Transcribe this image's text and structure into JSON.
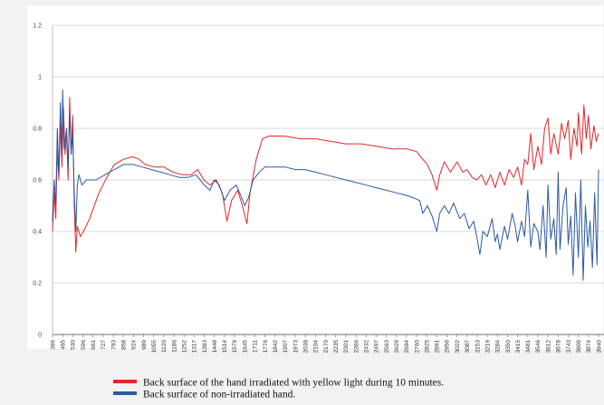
{
  "chart_data": {
    "type": "line",
    "ylim": [
      0,
      1.2
    ],
    "yticks": [
      "0",
      "0.2",
      "0.4",
      "0.6",
      "0.8",
      "1",
      "1.2"
    ],
    "grid": true,
    "legend_position": "bottom",
    "x_categories": [
      "399",
      "465",
      "530",
      "596",
      "661",
      "727",
      "793",
      "858",
      "924",
      "989",
      "1055",
      "1120",
      "1186",
      "1252",
      "1317",
      "1383",
      "1448",
      "1514",
      "1579",
      "1645",
      "1711",
      "1776",
      "1842",
      "1907",
      "1973",
      "2038",
      "2104",
      "2170",
      "2235",
      "2301",
      "2366",
      "2432",
      "2497",
      "2563",
      "2629",
      "2694",
      "2760",
      "2825",
      "2891",
      "2956",
      "3022",
      "3087",
      "3153",
      "3219",
      "3284",
      "3350",
      "3415",
      "3481",
      "3546",
      "3612",
      "3678",
      "3743",
      "3809",
      "3874",
      "3940"
    ],
    "series": [
      {
        "name": "Back surface of the hand irradiated with yellow light during 10 minutes.",
        "color": "#e3262b",
        "points": [
          [
            399,
            0.4
          ],
          [
            410,
            0.55
          ],
          [
            420,
            0.45
          ],
          [
            430,
            0.72
          ],
          [
            440,
            0.6
          ],
          [
            450,
            0.82
          ],
          [
            460,
            0.65
          ],
          [
            470,
            0.88
          ],
          [
            480,
            0.7
          ],
          [
            490,
            0.78
          ],
          [
            500,
            0.6
          ],
          [
            510,
            0.92
          ],
          [
            520,
            0.7
          ],
          [
            530,
            0.85
          ],
          [
            540,
            0.5
          ],
          [
            550,
            0.32
          ],
          [
            560,
            0.42
          ],
          [
            580,
            0.38
          ],
          [
            600,
            0.4
          ],
          [
            640,
            0.45
          ],
          [
            700,
            0.55
          ],
          [
            760,
            0.62
          ],
          [
            800,
            0.66
          ],
          [
            860,
            0.68
          ],
          [
            920,
            0.69
          ],
          [
            960,
            0.68
          ],
          [
            1000,
            0.66
          ],
          [
            1060,
            0.65
          ],
          [
            1120,
            0.65
          ],
          [
            1180,
            0.63
          ],
          [
            1240,
            0.62
          ],
          [
            1300,
            0.62
          ],
          [
            1340,
            0.64
          ],
          [
            1380,
            0.6
          ],
          [
            1420,
            0.58
          ],
          [
            1460,
            0.6
          ],
          [
            1500,
            0.55
          ],
          [
            1530,
            0.44
          ],
          [
            1560,
            0.52
          ],
          [
            1600,
            0.56
          ],
          [
            1630,
            0.5
          ],
          [
            1660,
            0.43
          ],
          [
            1680,
            0.55
          ],
          [
            1720,
            0.68
          ],
          [
            1760,
            0.76
          ],
          [
            1800,
            0.77
          ],
          [
            1900,
            0.77
          ],
          [
            2000,
            0.76
          ],
          [
            2100,
            0.76
          ],
          [
            2200,
            0.75
          ],
          [
            2300,
            0.74
          ],
          [
            2400,
            0.74
          ],
          [
            2500,
            0.73
          ],
          [
            2600,
            0.72
          ],
          [
            2700,
            0.72
          ],
          [
            2760,
            0.71
          ],
          [
            2800,
            0.68
          ],
          [
            2830,
            0.66
          ],
          [
            2860,
            0.62
          ],
          [
            2891,
            0.56
          ],
          [
            2910,
            0.62
          ],
          [
            2940,
            0.67
          ],
          [
            2980,
            0.63
          ],
          [
            3022,
            0.67
          ],
          [
            3060,
            0.63
          ],
          [
            3087,
            0.64
          ],
          [
            3120,
            0.61
          ],
          [
            3150,
            0.6
          ],
          [
            3180,
            0.62
          ],
          [
            3210,
            0.58
          ],
          [
            3240,
            0.62
          ],
          [
            3270,
            0.57
          ],
          [
            3300,
            0.63
          ],
          [
            3330,
            0.58
          ],
          [
            3360,
            0.64
          ],
          [
            3390,
            0.61
          ],
          [
            3415,
            0.65
          ],
          [
            3440,
            0.58
          ],
          [
            3460,
            0.68
          ],
          [
            3481,
            0.66
          ],
          [
            3500,
            0.78
          ],
          [
            3520,
            0.64
          ],
          [
            3546,
            0.73
          ],
          [
            3570,
            0.66
          ],
          [
            3590,
            0.8
          ],
          [
            3612,
            0.84
          ],
          [
            3630,
            0.7
          ],
          [
            3650,
            0.78
          ],
          [
            3678,
            0.7
          ],
          [
            3700,
            0.82
          ],
          [
            3720,
            0.76
          ],
          [
            3743,
            0.83
          ],
          [
            3760,
            0.68
          ],
          [
            3780,
            0.8
          ],
          [
            3800,
            0.73
          ],
          [
            3809,
            0.86
          ],
          [
            3830,
            0.7
          ],
          [
            3845,
            0.89
          ],
          [
            3860,
            0.76
          ],
          [
            3874,
            0.85
          ],
          [
            3890,
            0.72
          ],
          [
            3910,
            0.81
          ],
          [
            3925,
            0.75
          ],
          [
            3940,
            0.78
          ]
        ]
      },
      {
        "name": "Back surface of non-irradiated hand.",
        "color": "#2c5aa0",
        "points": [
          [
            399,
            0.44
          ],
          [
            410,
            0.6
          ],
          [
            420,
            0.5
          ],
          [
            430,
            0.8
          ],
          [
            440,
            0.62
          ],
          [
            450,
            0.9
          ],
          [
            460,
            0.7
          ],
          [
            465,
            0.95
          ],
          [
            475,
            0.72
          ],
          [
            490,
            0.8
          ],
          [
            500,
            0.65
          ],
          [
            510,
            0.86
          ],
          [
            520,
            0.7
          ],
          [
            530,
            0.78
          ],
          [
            540,
            0.55
          ],
          [
            550,
            0.4
          ],
          [
            560,
            0.58
          ],
          [
            570,
            0.62
          ],
          [
            590,
            0.58
          ],
          [
            620,
            0.6
          ],
          [
            680,
            0.6
          ],
          [
            740,
            0.62
          ],
          [
            800,
            0.64
          ],
          [
            860,
            0.66
          ],
          [
            920,
            0.66
          ],
          [
            980,
            0.65
          ],
          [
            1040,
            0.64
          ],
          [
            1100,
            0.63
          ],
          [
            1160,
            0.62
          ],
          [
            1220,
            0.61
          ],
          [
            1280,
            0.61
          ],
          [
            1330,
            0.62
          ],
          [
            1383,
            0.58
          ],
          [
            1420,
            0.56
          ],
          [
            1448,
            0.6
          ],
          [
            1480,
            0.58
          ],
          [
            1514,
            0.52
          ],
          [
            1550,
            0.56
          ],
          [
            1590,
            0.58
          ],
          [
            1620,
            0.54
          ],
          [
            1645,
            0.5
          ],
          [
            1670,
            0.53
          ],
          [
            1700,
            0.6
          ],
          [
            1740,
            0.63
          ],
          [
            1776,
            0.65
          ],
          [
            1842,
            0.65
          ],
          [
            1907,
            0.65
          ],
          [
            1973,
            0.64
          ],
          [
            2038,
            0.64
          ],
          [
            2104,
            0.63
          ],
          [
            2170,
            0.62
          ],
          [
            2235,
            0.61
          ],
          [
            2301,
            0.6
          ],
          [
            2366,
            0.59
          ],
          [
            2432,
            0.58
          ],
          [
            2497,
            0.57
          ],
          [
            2563,
            0.56
          ],
          [
            2629,
            0.55
          ],
          [
            2694,
            0.54
          ],
          [
            2740,
            0.53
          ],
          [
            2780,
            0.52
          ],
          [
            2800,
            0.47
          ],
          [
            2830,
            0.5
          ],
          [
            2860,
            0.46
          ],
          [
            2891,
            0.4
          ],
          [
            2910,
            0.47
          ],
          [
            2940,
            0.5
          ],
          [
            2970,
            0.47
          ],
          [
            3000,
            0.51
          ],
          [
            3040,
            0.45
          ],
          [
            3070,
            0.47
          ],
          [
            3100,
            0.41
          ],
          [
            3130,
            0.44
          ],
          [
            3153,
            0.37
          ],
          [
            3170,
            0.31
          ],
          [
            3190,
            0.4
          ],
          [
            3219,
            0.38
          ],
          [
            3250,
            0.45
          ],
          [
            3270,
            0.36
          ],
          [
            3284,
            0.39
          ],
          [
            3300,
            0.33
          ],
          [
            3330,
            0.42
          ],
          [
            3350,
            0.37
          ],
          [
            3380,
            0.47
          ],
          [
            3400,
            0.42
          ],
          [
            3415,
            0.36
          ],
          [
            3440,
            0.44
          ],
          [
            3460,
            0.38
          ],
          [
            3481,
            0.56
          ],
          [
            3500,
            0.34
          ],
          [
            3520,
            0.43
          ],
          [
            3546,
            0.4
          ],
          [
            3560,
            0.33
          ],
          [
            3580,
            0.5
          ],
          [
            3600,
            0.3
          ],
          [
            3612,
            0.58
          ],
          [
            3630,
            0.37
          ],
          [
            3650,
            0.45
          ],
          [
            3665,
            0.31
          ],
          [
            3678,
            0.63
          ],
          [
            3690,
            0.33
          ],
          [
            3710,
            0.5
          ],
          [
            3730,
            0.57
          ],
          [
            3743,
            0.35
          ],
          [
            3760,
            0.46
          ],
          [
            3775,
            0.23
          ],
          [
            3790,
            0.55
          ],
          [
            3809,
            0.3
          ],
          [
            3825,
            0.6
          ],
          [
            3840,
            0.21
          ],
          [
            3855,
            0.5
          ],
          [
            3870,
            0.34
          ],
          [
            3885,
            0.44
          ],
          [
            3900,
            0.26
          ],
          [
            3915,
            0.55
          ],
          [
            3930,
            0.27
          ],
          [
            3940,
            0.64
          ]
        ]
      }
    ]
  }
}
